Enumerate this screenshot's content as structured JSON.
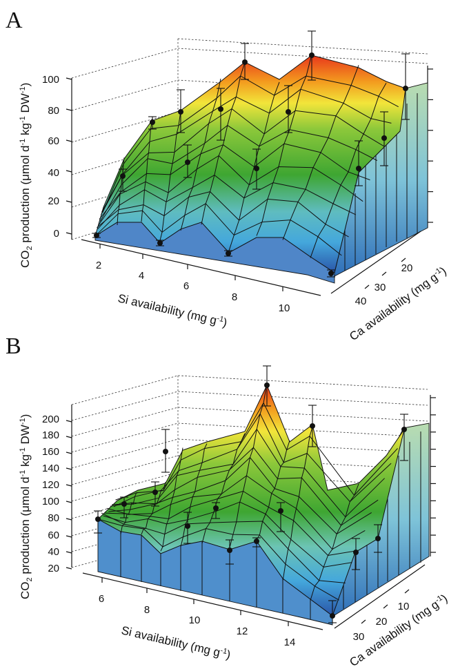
{
  "chart_data": [
    {
      "panel": "A",
      "type": "surface",
      "ylabel_main": "CO",
      "ylabel_sub": "2",
      "ylabel_rest": " production (μmol d",
      "ylabel_sup1": "-1",
      "ylabel_mid": " kg",
      "ylabel_sup2": "-1",
      "ylabel_end": " DW",
      "ylabel_sup3": "-1",
      "ylabel_close": ")",
      "xlabel_main": "Si availability (mg g",
      "xlabel_sup": "-1",
      "xlabel_close": ")",
      "zlabel_main": "Ca availability (mg g",
      "zlabel_sup": "-1",
      "zlabel_close": ")",
      "x_ticks": [
        "2",
        "4",
        "6",
        "8",
        "10"
      ],
      "z_ticks": [
        "40",
        "30",
        "20"
      ],
      "y_ticks": [
        "0",
        "20",
        "40",
        "60",
        "80",
        "100"
      ],
      "ylim": [
        0,
        100
      ],
      "front_row_values": [
        2,
        10,
        0,
        10,
        -5,
        6,
        6,
        -6
      ],
      "peak_values": [
        70,
        84,
        98,
        100,
        90
      ]
    },
    {
      "panel": "B",
      "type": "surface",
      "ylabel_main": "CO",
      "ylabel_sub": "2",
      "ylabel_rest": " production (μmol d",
      "ylabel_sup1": "-1",
      "ylabel_mid": " kg",
      "ylabel_sup2": "-1",
      "ylabel_end": " DW",
      "ylabel_sup3": "-1",
      "ylabel_close": ")",
      "xlabel_main": "Si availability (mg g",
      "xlabel_sup": "-1",
      "xlabel_close": ")",
      "zlabel_main": "Ca availability (mg g",
      "zlabel_sup": "-1",
      "zlabel_close": ")",
      "x_ticks": [
        "6",
        "8",
        "10",
        "12",
        "14"
      ],
      "z_ticks": [
        "30",
        "20",
        "10"
      ],
      "y_ticks": [
        "20",
        "40",
        "60",
        "80",
        "100",
        "120",
        "140",
        "160",
        "180",
        "200"
      ],
      "ylim": [
        20,
        200
      ],
      "front_row_values": [
        70,
        55,
        50,
        45,
        50,
        40,
        25,
        15
      ],
      "peak_values": [
        150,
        205,
        175,
        160
      ]
    }
  ]
}
